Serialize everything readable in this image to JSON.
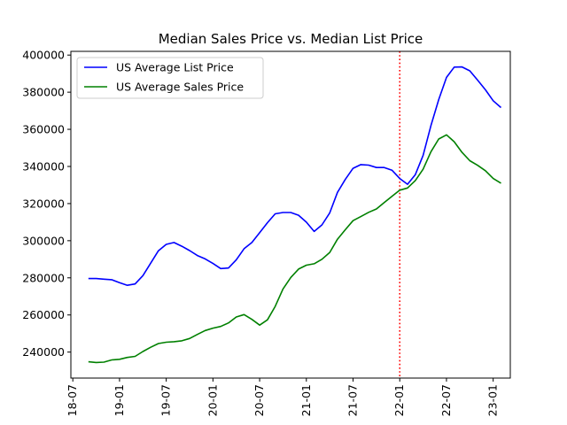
{
  "chart_data": {
    "type": "line",
    "title": "Median Sales Price vs. Median List Price",
    "xlabel": "",
    "ylabel": "",
    "x_ticks": [
      "18-07",
      "19-01",
      "19-07",
      "20-01",
      "20-07",
      "21-01",
      "21-07",
      "22-01",
      "22-07",
      "23-01"
    ],
    "y_ticks": [
      "240000",
      "260000",
      "280000",
      "300000",
      "320000",
      "340000",
      "360000",
      "380000",
      "400000"
    ],
    "ylim": [
      226000,
      402000
    ],
    "xlim": [
      "2018-07",
      "2023-03"
    ],
    "grid": false,
    "legend_position": "top-left",
    "annotation": {
      "type": "vertical-line",
      "x": "2022-01",
      "style": "dotted",
      "color": "#ff0000"
    },
    "x": [
      "2018-09",
      "2018-10",
      "2018-11",
      "2018-12",
      "2019-01",
      "2019-02",
      "2019-03",
      "2019-04",
      "2019-05",
      "2019-06",
      "2019-07",
      "2019-08",
      "2019-09",
      "2019-10",
      "2019-11",
      "2019-12",
      "2020-01",
      "2020-02",
      "2020-03",
      "2020-04",
      "2020-05",
      "2020-06",
      "2020-07",
      "2020-08",
      "2020-09",
      "2020-10",
      "2020-11",
      "2020-12",
      "2021-01",
      "2021-02",
      "2021-03",
      "2021-04",
      "2021-05",
      "2021-06",
      "2021-07",
      "2021-08",
      "2021-09",
      "2021-10",
      "2021-11",
      "2021-12",
      "2022-01",
      "2022-02",
      "2022-03",
      "2022-04",
      "2022-05",
      "2022-06",
      "2022-07",
      "2022-08",
      "2022-09",
      "2022-10",
      "2022-11",
      "2022-12",
      "2023-01",
      "2023-02"
    ],
    "series": [
      {
        "name": "US Average List Price",
        "color": "#0000ff",
        "values": [
          279600,
          279600,
          279300,
          279000,
          277400,
          276000,
          276700,
          281200,
          287900,
          294600,
          298000,
          299000,
          297000,
          294700,
          292000,
          290200,
          287700,
          285000,
          285300,
          289700,
          295700,
          299000,
          304300,
          309700,
          314500,
          315200,
          315200,
          313700,
          310000,
          305000,
          308500,
          315000,
          326000,
          333000,
          339000,
          341000,
          340700,
          339400,
          339400,
          338000,
          333500,
          330400,
          335600,
          346000,
          362000,
          376000,
          388000,
          393500,
          393600,
          391500,
          386500,
          381300,
          375400,
          371700
        ]
      },
      {
        "name": "US Average Sales Price",
        "color": "#008000",
        "values": [
          234800,
          234400,
          234600,
          235800,
          236100,
          237100,
          237700,
          240300,
          242600,
          244600,
          245300,
          245600,
          246100,
          247300,
          249500,
          251600,
          252900,
          253800,
          255700,
          258900,
          260200,
          257600,
          254500,
          257400,
          264600,
          274000,
          280200,
          284700,
          286800,
          287600,
          290000,
          293700,
          300800,
          305900,
          310800,
          313000,
          315300,
          317100,
          320600,
          323900,
          327200,
          328400,
          332400,
          338500,
          347900,
          354800,
          357000,
          353300,
          347600,
          343100,
          340600,
          337700,
          333500,
          331000
        ]
      }
    ]
  }
}
